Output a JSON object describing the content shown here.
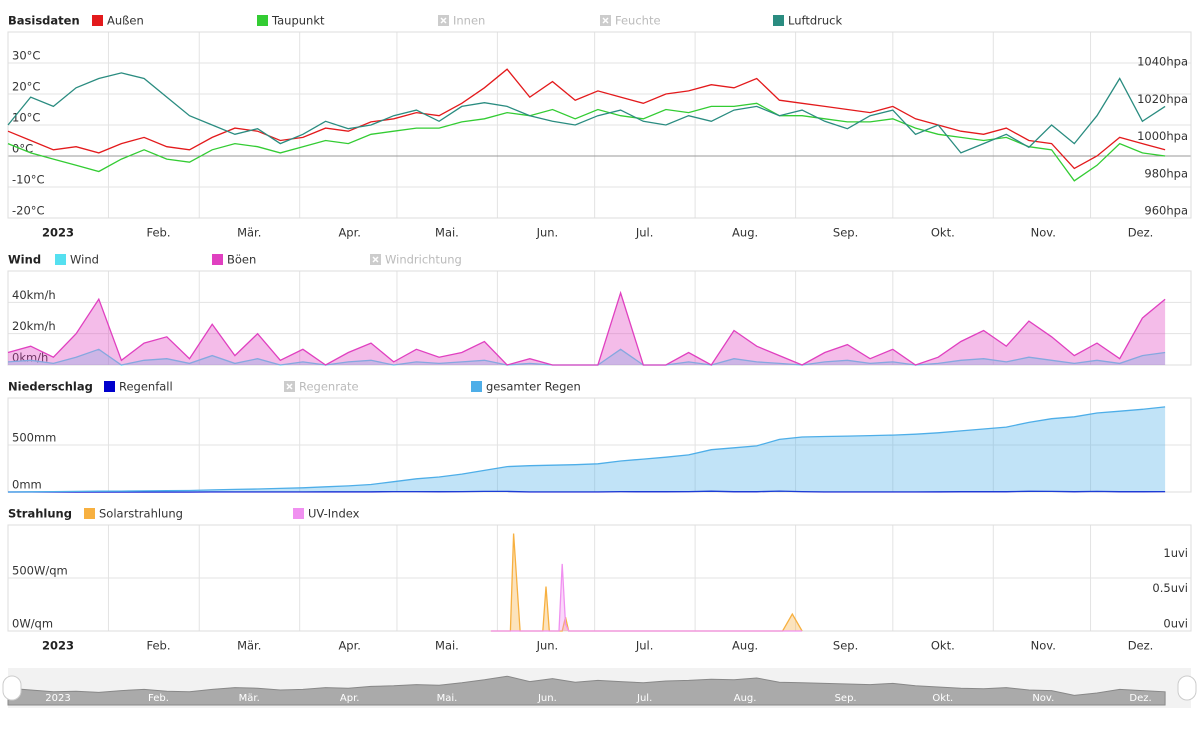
{
  "chart_data": [
    {
      "type": "line",
      "title": "Basisdaten",
      "x": [
        1,
        8,
        15,
        22,
        29,
        36,
        43,
        50,
        57,
        64,
        71,
        78,
        85,
        92,
        99,
        106,
        113,
        120,
        127,
        134,
        141,
        148,
        155,
        162,
        169,
        176,
        183,
        190,
        197,
        204,
        211,
        218,
        225,
        232,
        239,
        246,
        253,
        260,
        267,
        274,
        281,
        288,
        295,
        302,
        309,
        316,
        323,
        330,
        337,
        344,
        351,
        358
      ],
      "xlim": [
        1,
        366
      ],
      "xticks": [
        {
          "value": 1,
          "label": "2023"
        },
        {
          "value": 32,
          "label": "Feb."
        },
        {
          "value": 60,
          "label": "Mär."
        },
        {
          "value": 91,
          "label": "Apr."
        },
        {
          "value": 121,
          "label": "Mai."
        },
        {
          "value": 152,
          "label": "Jun."
        },
        {
          "value": 182,
          "label": "Jul."
        },
        {
          "value": 213,
          "label": "Aug."
        },
        {
          "value": 244,
          "label": "Sep."
        },
        {
          "value": 274,
          "label": "Okt."
        },
        {
          "value": 305,
          "label": "Nov."
        },
        {
          "value": 335,
          "label": "Dez."
        }
      ],
      "ylim": [
        -20,
        40
      ],
      "yticks": [
        {
          "value": -20,
          "label": "-20°C"
        },
        {
          "value": -10,
          "label": "-10°C"
        },
        {
          "value": 0,
          "label": "0°C"
        },
        {
          "value": 10,
          "label": "10°C"
        },
        {
          "value": 20,
          "label": "20°C"
        },
        {
          "value": 30,
          "label": "30°C"
        }
      ],
      "y2lim": [
        960,
        1060
      ],
      "y2ticks": [
        {
          "value": 960,
          "label": "960hpa"
        },
        {
          "value": 980,
          "label": "980hpa"
        },
        {
          "value": 1000,
          "label": "1000hpa"
        },
        {
          "value": 1020,
          "label": "1020hpa"
        },
        {
          "value": 1040,
          "label": "1040hpa"
        }
      ],
      "grid": true,
      "series": [
        {
          "name": "Außen",
          "color": "#e31a1c",
          "values": [
            8,
            5,
            2,
            3,
            1,
            4,
            6,
            3,
            2,
            6,
            9,
            8,
            5,
            6,
            9,
            8,
            11,
            12,
            14,
            13,
            17,
            22,
            28,
            19,
            24,
            18,
            21,
            19,
            17,
            20,
            21,
            23,
            22,
            25,
            18,
            17,
            16,
            15,
            14,
            16,
            12,
            10,
            8,
            7,
            9,
            5,
            4,
            -4,
            0,
            6,
            4,
            2
          ]
        },
        {
          "name": "Taupunkt",
          "color": "#33cc33",
          "values": [
            4,
            1,
            -1,
            -3,
            -5,
            -1,
            2,
            -1,
            -2,
            2,
            4,
            3,
            1,
            3,
            5,
            4,
            7,
            8,
            9,
            9,
            11,
            12,
            14,
            13,
            15,
            12,
            15,
            13,
            12,
            15,
            14,
            16,
            16,
            17,
            13,
            13,
            12,
            11,
            11,
            12,
            9,
            7,
            6,
            5,
            6,
            3,
            2,
            -8,
            -3,
            4,
            1,
            0
          ]
        },
        {
          "name": "Innen",
          "visible": false
        },
        {
          "name": "Feuchte",
          "visible": false
        },
        {
          "name": "Luftdruck",
          "color": "#2a8c80",
          "axis": "y2",
          "values": [
            1010,
            1025,
            1020,
            1030,
            1035,
            1038,
            1035,
            1025,
            1015,
            1010,
            1005,
            1008,
            1000,
            1005,
            1012,
            1008,
            1010,
            1015,
            1018,
            1012,
            1020,
            1022,
            1020,
            1015,
            1012,
            1010,
            1015,
            1018,
            1012,
            1010,
            1015,
            1012,
            1018,
            1020,
            1015,
            1018,
            1012,
            1008,
            1015,
            1018,
            1005,
            1010,
            995,
            1000,
            1005,
            998,
            1010,
            1000,
            1015,
            1035,
            1012,
            1020
          ]
        }
      ]
    },
    {
      "type": "line",
      "title": "Wind",
      "x": [
        1,
        8,
        15,
        22,
        29,
        36,
        43,
        50,
        57,
        64,
        71,
        78,
        85,
        92,
        99,
        106,
        113,
        120,
        127,
        134,
        141,
        148,
        155,
        162,
        169,
        176,
        183,
        190,
        197,
        204,
        211,
        218,
        225,
        232,
        239,
        246,
        253,
        260,
        267,
        274,
        281,
        288,
        295,
        302,
        309,
        316,
        323,
        330,
        337,
        344,
        351,
        358
      ],
      "xlim": [
        1,
        366
      ],
      "ylim": [
        0,
        60
      ],
      "yticks": [
        {
          "value": 0,
          "label": "0km/h"
        },
        {
          "value": 20,
          "label": "20km/h"
        },
        {
          "value": 40,
          "label": "40km/h"
        }
      ],
      "grid": true,
      "series": [
        {
          "name": "Wind",
          "color": "#55e0f0",
          "type": "area",
          "values": [
            2,
            3,
            1,
            5,
            10,
            0,
            3,
            4,
            1,
            6,
            1,
            4,
            0,
            2,
            0,
            2,
            3,
            0,
            2,
            1,
            2,
            3,
            0,
            1,
            0,
            0,
            0,
            10,
            0,
            0,
            2,
            0,
            4,
            2,
            1,
            0,
            2,
            3,
            1,
            2,
            0,
            1,
            3,
            4,
            2,
            5,
            3,
            1,
            3,
            1,
            6,
            8
          ]
        },
        {
          "name": "Böen",
          "color": "#e040c0",
          "type": "area",
          "values": [
            8,
            12,
            5,
            20,
            42,
            3,
            14,
            18,
            4,
            26,
            6,
            20,
            3,
            10,
            0,
            8,
            14,
            2,
            10,
            5,
            8,
            15,
            0,
            4,
            0,
            0,
            0,
            46,
            0,
            0,
            8,
            0,
            22,
            12,
            6,
            0,
            8,
            13,
            4,
            10,
            0,
            5,
            15,
            22,
            12,
            28,
            18,
            6,
            14,
            4,
            30,
            42
          ]
        },
        {
          "name": "Windrichtung",
          "visible": false
        }
      ]
    },
    {
      "type": "line",
      "title": "Niederschlag",
      "x": [
        1,
        8,
        15,
        22,
        29,
        36,
        43,
        50,
        57,
        64,
        71,
        78,
        85,
        92,
        99,
        106,
        113,
        120,
        127,
        134,
        141,
        148,
        155,
        162,
        169,
        176,
        183,
        190,
        197,
        204,
        211,
        218,
        225,
        232,
        239,
        246,
        253,
        260,
        267,
        274,
        281,
        288,
        295,
        302,
        309,
        316,
        323,
        330,
        337,
        344,
        351,
        358
      ],
      "xlim": [
        1,
        366
      ],
      "ylim": [
        0,
        1000
      ],
      "yticks": [
        {
          "value": 0,
          "label": "0mm"
        },
        {
          "value": 500,
          "label": "500mm"
        }
      ],
      "grid": true,
      "series": [
        {
          "name": "Regenfall",
          "color": "#0000cc",
          "values": [
            0,
            0,
            0,
            0,
            0,
            0,
            0,
            0,
            0,
            1,
            1,
            1,
            1,
            1,
            2,
            2,
            2,
            4,
            4,
            3,
            4,
            6,
            6,
            1,
            1,
            1,
            1,
            4,
            3,
            3,
            4,
            8,
            3,
            3,
            10,
            4,
            1,
            1,
            1,
            1,
            1,
            2,
            3,
            3,
            3,
            7,
            6,
            3,
            6,
            3,
            3,
            4
          ]
        },
        {
          "name": "Regenrate",
          "visible": false
        },
        {
          "name": "gesamter Regen",
          "color": "#4eaee8",
          "type": "area",
          "values": [
            0,
            2,
            4,
            6,
            8,
            10,
            12,
            14,
            16,
            22,
            28,
            32,
            38,
            45,
            55,
            65,
            80,
            110,
            140,
            160,
            190,
            230,
            270,
            280,
            285,
            290,
            300,
            330,
            350,
            370,
            395,
            450,
            470,
            490,
            560,
            585,
            590,
            595,
            600,
            605,
            615,
            630,
            650,
            670,
            690,
            740,
            780,
            800,
            840,
            860,
            880,
            905
          ]
        }
      ]
    },
    {
      "type": "line",
      "title": "Strahlung",
      "x": [
        150,
        156,
        157,
        159,
        163,
        166,
        167,
        168,
        171,
        172,
        173,
        174,
        176,
        240,
        243,
        246
      ],
      "xlim": [
        1,
        366
      ],
      "xticks": [
        {
          "value": 1,
          "label": "2023"
        },
        {
          "value": 32,
          "label": "Feb."
        },
        {
          "value": 60,
          "label": "Mär."
        },
        {
          "value": 91,
          "label": "Apr."
        },
        {
          "value": 121,
          "label": "Mai."
        },
        {
          "value": 152,
          "label": "Jun."
        },
        {
          "value": 182,
          "label": "Jul."
        },
        {
          "value": 213,
          "label": "Aug."
        },
        {
          "value": 244,
          "label": "Sep."
        },
        {
          "value": 274,
          "label": "Okt."
        },
        {
          "value": 305,
          "label": "Nov."
        },
        {
          "value": 335,
          "label": "Dez."
        }
      ],
      "ylim": [
        0,
        1000
      ],
      "yticks": [
        {
          "value": 0,
          "label": "0W/qm"
        },
        {
          "value": 500,
          "label": "500W/qm"
        }
      ],
      "y2lim": [
        0,
        1.5
      ],
      "y2ticks": [
        {
          "value": 0,
          "label": "0uvi"
        },
        {
          "value": 0.5,
          "label": "0.5uvi"
        },
        {
          "value": 1,
          "label": "1uvi"
        }
      ],
      "grid": true,
      "series": [
        {
          "name": "Solarstrahlung",
          "color": "#f7b040",
          "type": "area",
          "values": [
            0,
            0,
            920,
            0,
            0,
            0,
            420,
            0,
            0,
            0,
            130,
            0,
            0,
            0,
            160,
            0
          ]
        },
        {
          "name": "UV-Index",
          "color": "#f090f0",
          "type": "area",
          "axis": "y2",
          "values": [
            0,
            0,
            0,
            0,
            0,
            0,
            0,
            0,
            0,
            0.95,
            0.1,
            0,
            0,
            0,
            0,
            0
          ]
        }
      ]
    }
  ]
}
